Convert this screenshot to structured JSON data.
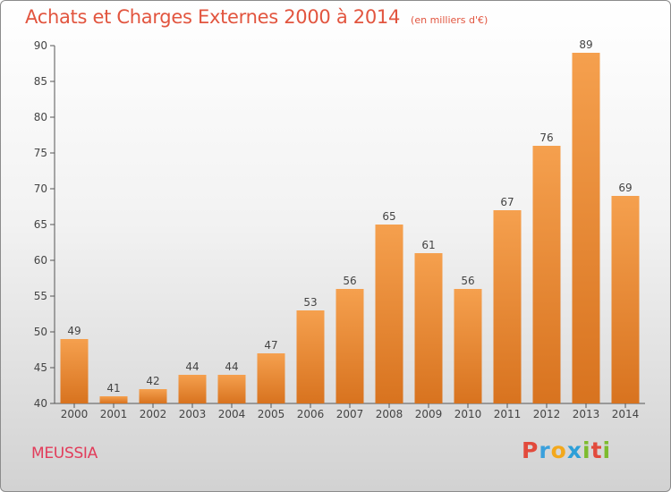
{
  "header": {
    "title": "Achats et Charges Externes 2000 à 2014",
    "subtitle": "(en milliers d'€)"
  },
  "footer": {
    "commune": "MEUSSIA",
    "logo_letters": [
      "P",
      "r",
      "o",
      "x",
      "i",
      "t",
      "i"
    ]
  },
  "colors": {
    "bar_light": "#f5a04e",
    "bar_dark": "#d8731f",
    "title": "#e2553f",
    "commune": "#e23c5a",
    "logo": [
      "#e24a3c",
      "#3aa0dc",
      "#f3a81c",
      "#2d9fd8",
      "#7dbb2e",
      "#e24a3c",
      "#7dbb2e"
    ]
  },
  "chart_data": {
    "type": "bar",
    "title": "Achats et Charges Externes 2000 à 2014",
    "subtitle": "(en milliers d'€)",
    "categories": [
      "2000",
      "2001",
      "2002",
      "2003",
      "2004",
      "2005",
      "2006",
      "2007",
      "2008",
      "2009",
      "2010",
      "2011",
      "2012",
      "2013",
      "2014"
    ],
    "values": [
      49,
      41,
      42,
      44,
      44,
      47,
      53,
      56,
      65,
      61,
      56,
      67,
      76,
      89,
      69
    ],
    "ylim": [
      40,
      90
    ],
    "yticks": [
      40,
      45,
      50,
      55,
      60,
      65,
      70,
      75,
      80,
      85,
      90
    ],
    "grid": false,
    "legend": "none",
    "xlabel": "",
    "ylabel": ""
  }
}
